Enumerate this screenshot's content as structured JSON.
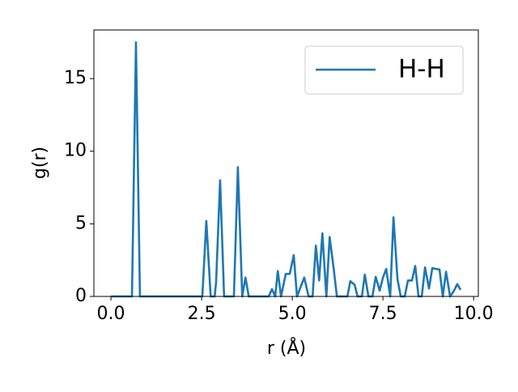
{
  "chart_data": {
    "type": "line",
    "xlabel": "r (Å)",
    "ylabel": "g(r)",
    "xlim": [
      -0.47,
      10.13
    ],
    "ylim": [
      0,
      18.35
    ],
    "xticks": [
      {
        "value": 0,
        "label": "0.0"
      },
      {
        "value": 2.5,
        "label": "2.5"
      },
      {
        "value": 5,
        "label": "5.0"
      },
      {
        "value": 7.5,
        "label": "7.5"
      },
      {
        "value": 10,
        "label": "10.0"
      }
    ],
    "yticks": [
      0,
      5,
      10,
      15
    ],
    "legend": "upper right",
    "x": [
      0,
      0.58,
      0.69,
      0.8,
      2.52,
      2.63,
      2.75,
      2.86,
      2.9,
      3.01,
      3.12,
      3.39,
      3.5,
      3.62,
      3.71,
      3.8,
      4.35,
      4.44,
      4.53,
      4.6,
      4.69,
      4.82,
      4.93,
      5.04,
      5.13,
      5.33,
      5.45,
      5.56,
      5.65,
      5.74,
      5.83,
      5.94,
      6.03,
      6.14,
      6.23,
      6.52,
      6.6,
      6.72,
      6.8,
      6.92,
      7.0,
      7.1,
      7.21,
      7.3,
      7.41,
      7.5,
      7.59,
      7.7,
      7.79,
      7.9,
      7.99,
      8.1,
      8.19,
      8.3,
      8.39,
      8.48,
      8.57,
      8.66,
      8.77,
      8.86,
      8.95,
      9.06,
      9.15,
      9.24,
      9.35,
      9.46,
      9.55,
      9.64
    ],
    "series": [
      {
        "name": "H-H",
        "color": "#1f77b4",
        "values": [
          0,
          0,
          17.5,
          0,
          0,
          5.2,
          0,
          0,
          1.0,
          8.0,
          0,
          0,
          8.9,
          0,
          1.3,
          0,
          0,
          0.5,
          0,
          1.75,
          0,
          1.55,
          1.55,
          2.85,
          0,
          1.3,
          0,
          0,
          3.5,
          1.1,
          4.35,
          0,
          4.1,
          1.95,
          0,
          0,
          1.05,
          0.8,
          0,
          0,
          1.5,
          0,
          0,
          1.35,
          0.4,
          1.3,
          1.9,
          0,
          5.45,
          1.2,
          0,
          0,
          1.1,
          1.1,
          2.1,
          0,
          0,
          2.0,
          0.55,
          1.95,
          1.9,
          1.85,
          0,
          1.7,
          0,
          0.4,
          0.85,
          0.45
        ]
      }
    ]
  }
}
